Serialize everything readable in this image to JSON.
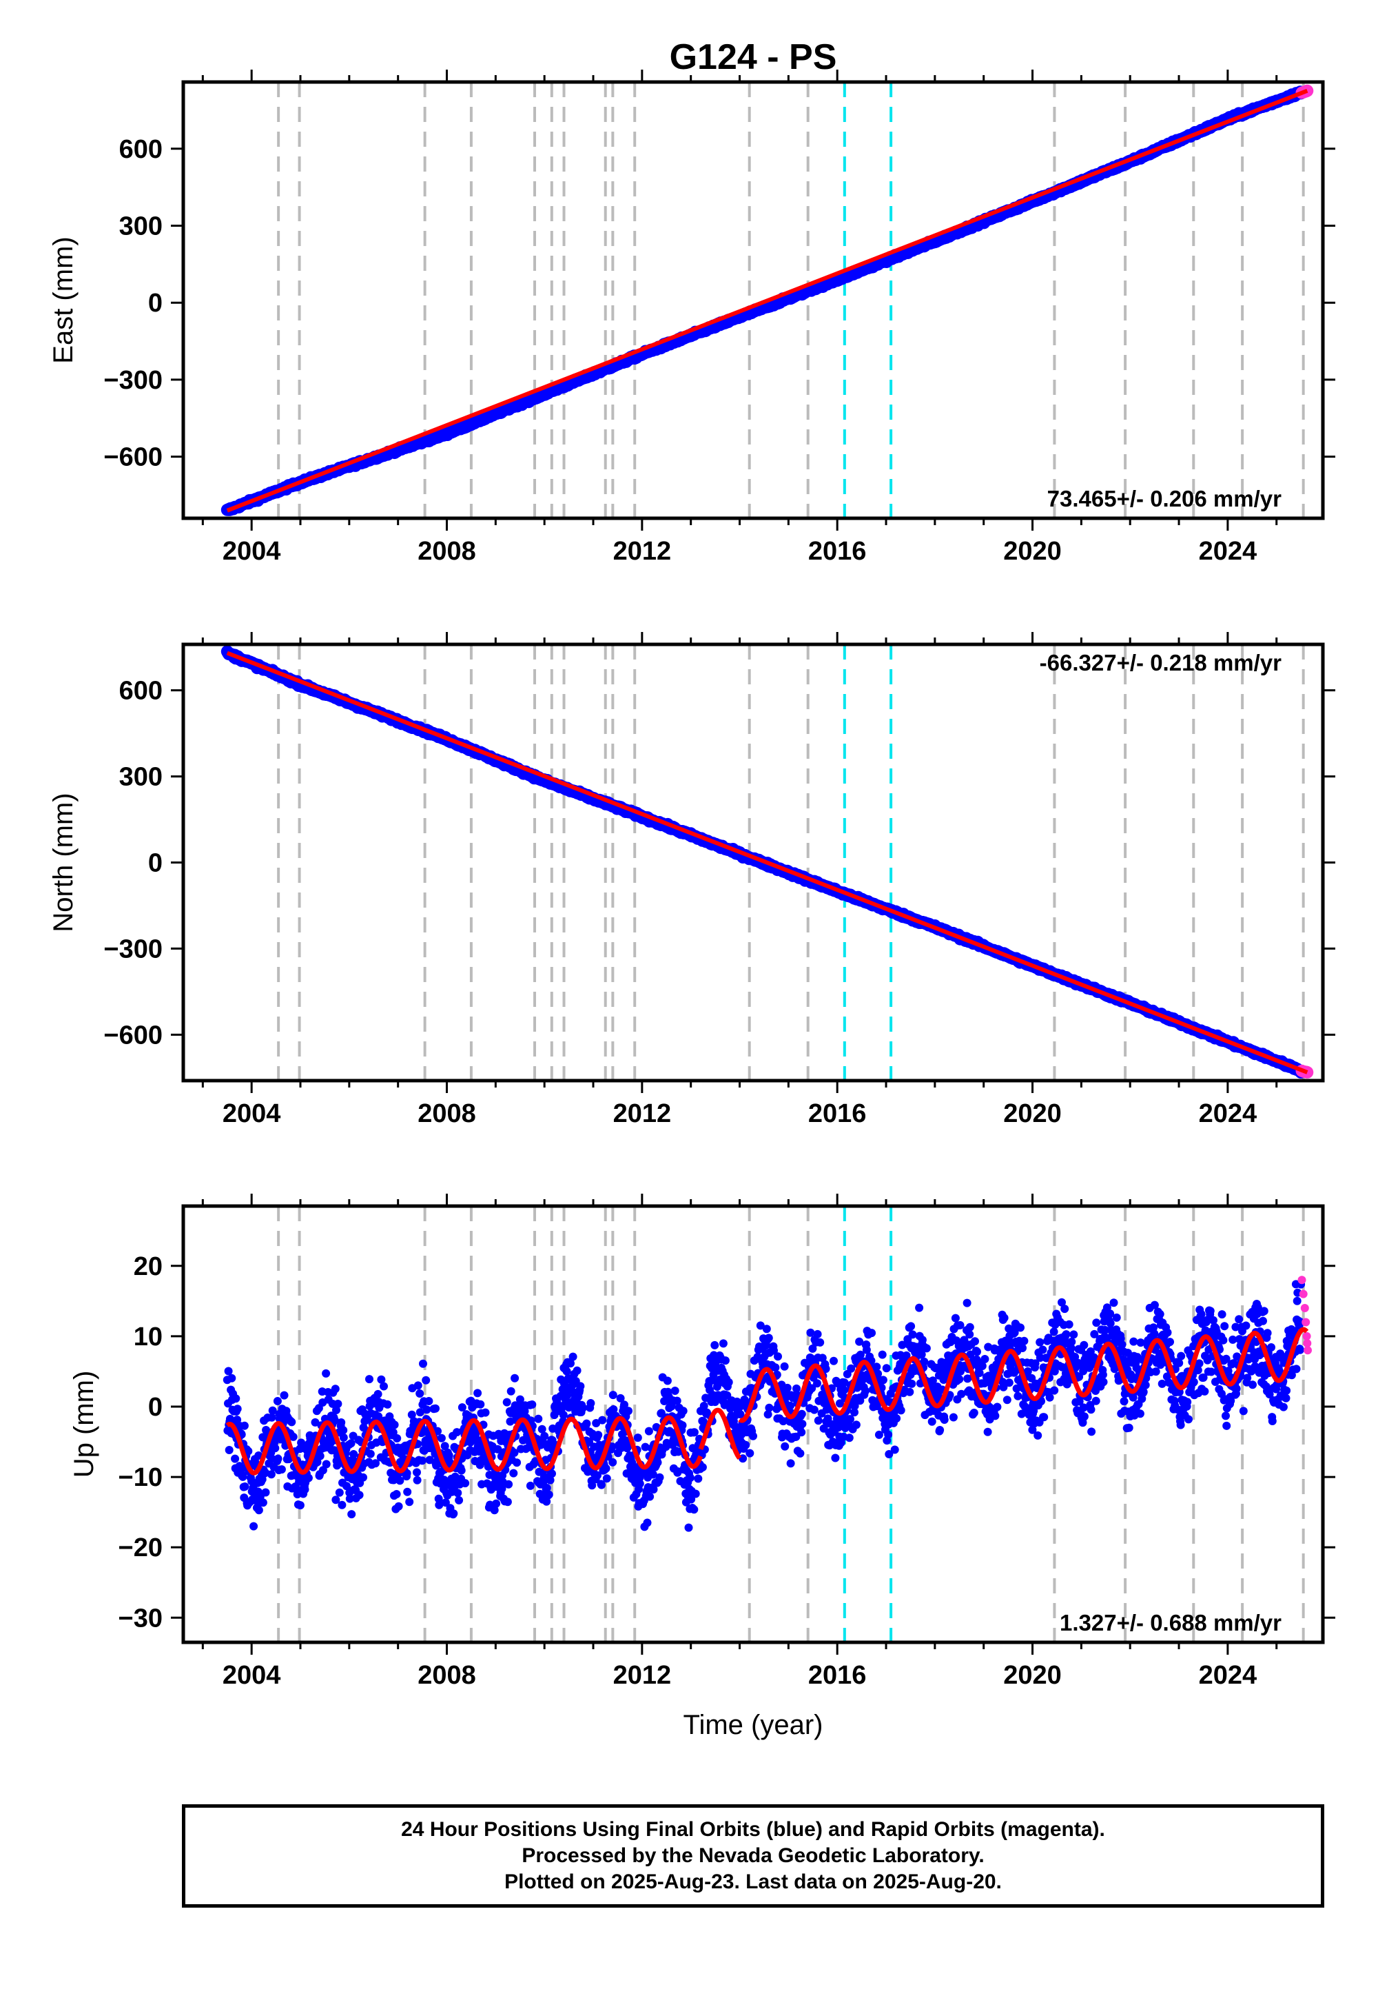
{
  "figure": {
    "title": "G124 - PS",
    "xlabel": "Time (year)",
    "caption": [
      "24 Hour Positions Using Final Orbits (blue) and Rapid Orbits (magenta).",
      "Processed by the Nevada Geodetic Laboratory.",
      "Plotted on 2025-Aug-23. Last data on 2025-Aug-20."
    ]
  },
  "colors": {
    "final": "#0000ff",
    "rapid": "#ff33cc",
    "model": "#ff0000",
    "equipment_change": "#bbbbbb",
    "earthquake": "#00e5ee"
  },
  "chart_data": [
    {
      "type": "scatter",
      "panel": "east",
      "ylabel": "East (mm)",
      "rate_text": "73.465+/- 0.206 mm/yr",
      "rate_position": "bottom-right",
      "xlim": [
        2002.6,
        2025.95
      ],
      "ylim": [
        -840,
        860
      ],
      "xticks": [
        2004,
        2008,
        2012,
        2016,
        2020,
        2024
      ],
      "yticks": [
        -600,
        -300,
        0,
        300,
        600
      ],
      "ytick_labels": [
        "−600",
        "−300",
        "0",
        "300",
        "600"
      ],
      "series": [
        {
          "name": "Final Orbits",
          "x": [
            2003.5,
            2005.0,
            2008.0,
            2010.0,
            2012.0,
            2014.0,
            2016.0,
            2018.0,
            2020.0,
            2022.0,
            2024.0,
            2025.5
          ],
          "y": [
            -810,
            -700,
            -510,
            -355,
            -200,
            -55,
            90,
            240,
            395,
            550,
            715,
            820
          ]
        },
        {
          "name": "Rapid Orbits",
          "x": [
            2025.52,
            2025.55,
            2025.58,
            2025.61,
            2025.63
          ],
          "y": [
            818,
            820,
            822,
            824,
            826
          ]
        }
      ],
      "model": {
        "start": 2003.5,
        "end": 2025.63,
        "start_value": -810,
        "end_value": 826,
        "annual_amplitude": 0
      }
    },
    {
      "type": "scatter",
      "panel": "north",
      "ylabel": "North (mm)",
      "rate_text": "-66.327+/- 0.218 mm/yr",
      "rate_position": "top-right",
      "xlim": [
        2002.6,
        2025.95
      ],
      "ylim": [
        -760,
        760
      ],
      "xticks": [
        2004,
        2008,
        2012,
        2016,
        2020,
        2024
      ],
      "yticks": [
        -600,
        -300,
        0,
        300,
        600
      ],
      "ytick_labels": [
        "−600",
        "−300",
        "0",
        "300",
        "600"
      ],
      "series": [
        {
          "name": "Final Orbits",
          "x": [
            2003.5,
            2005.0,
            2008.0,
            2010.0,
            2012.0,
            2014.0,
            2016.0,
            2018.0,
            2020.0,
            2022.0,
            2024.0,
            2025.5
          ],
          "y": [
            730,
            620,
            430,
            285,
            160,
            30,
            -100,
            -225,
            -360,
            -490,
            -625,
            -725
          ]
        },
        {
          "name": "Rapid Orbits",
          "x": [
            2025.52,
            2025.55,
            2025.58,
            2025.61,
            2025.63
          ],
          "y": [
            -726,
            -728,
            -729,
            -730,
            -731
          ]
        }
      ],
      "model": {
        "start": 2003.5,
        "end": 2025.63,
        "start_value": 730,
        "end_value": -731,
        "annual_amplitude": 0
      }
    },
    {
      "type": "scatter",
      "panel": "up",
      "ylabel": "Up (mm)",
      "rate_text": "1.327+/- 0.688 mm/yr",
      "rate_position": "bottom-right",
      "xlim": [
        2002.6,
        2025.95
      ],
      "ylim": [
        -33.5,
        28.5
      ],
      "xticks": [
        2004,
        2008,
        2012,
        2016,
        2020,
        2024
      ],
      "yticks": [
        -30,
        -20,
        -10,
        0,
        10,
        20
      ],
      "ytick_labels": [
        "−30",
        "−20",
        "−10",
        "0",
        "10",
        "20"
      ],
      "series": [
        {
          "name": "Final Orbits",
          "x": [
            2003.5,
            2004.0,
            2005.0,
            2006.0,
            2007.0,
            2008.0,
            2009.0,
            2010.0,
            2010.5,
            2011.0,
            2012.0,
            2012.5,
            2013.0,
            2013.5,
            2014.0,
            2014.5,
            2015.0,
            2016.0,
            2017.0,
            2018.0,
            2019.0,
            2020.0,
            2021.0,
            2022.0,
            2023.0,
            2024.0,
            2025.0,
            2025.5
          ],
          "y": [
            -4,
            -8,
            -6,
            -6,
            -5,
            -7,
            -6,
            -5,
            1,
            -4,
            -8,
            -5,
            -7,
            2,
            0,
            4,
            1,
            2,
            3,
            4,
            5,
            5,
            6,
            6,
            6,
            7,
            6,
            10
          ]
        },
        {
          "name": "Rapid Orbits",
          "x": [
            2025.52,
            2025.55,
            2025.58,
            2025.6,
            2025.62,
            2025.63,
            2025.64
          ],
          "y": [
            18,
            16,
            14,
            12,
            10,
            9,
            8
          ]
        }
      ],
      "model": {
        "steps": [
          {
            "start": 2003.5,
            "end": 2013.2,
            "start_value": -6,
            "end_value": -5
          },
          {
            "start": 2013.2,
            "end": 2014.0,
            "start_value": -4,
            "end_value": -4
          },
          {
            "start": 2014.0,
            "end": 2025.63,
            "start_value": 1.5,
            "end_value": 7.5
          }
        ],
        "annual_amplitude": 3.5
      }
    }
  ],
  "event_lines": {
    "equipment_changes": [
      2004.55,
      2004.98,
      2007.55,
      2008.5,
      2009.8,
      2010.15,
      2010.4,
      2011.25,
      2011.4,
      2011.85,
      2014.2,
      2015.4,
      2020.45,
      2021.9,
      2023.3,
      2024.3,
      2025.55
    ],
    "earthquakes": [
      2016.15,
      2017.1
    ]
  }
}
